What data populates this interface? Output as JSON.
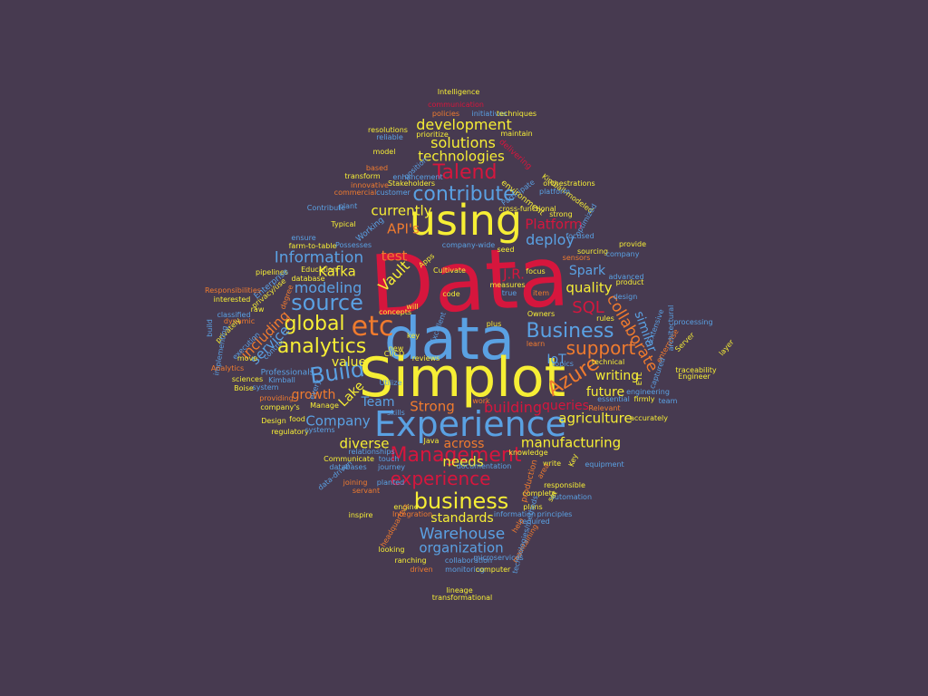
{
  "palette": {
    "background": "#473a50",
    "red": "#d6163d",
    "blue": "#5aa1e3",
    "yellow": "#f6ee35",
    "orange": "#f07b2e"
  },
  "words": [
    {
      "text": "Data",
      "color": "red"
    },
    {
      "text": "data",
      "color": "blue"
    },
    {
      "text": "Simplot",
      "color": "yellow"
    },
    {
      "text": "using",
      "color": "yellow"
    },
    {
      "text": "Experience",
      "color": "blue"
    },
    {
      "text": "etc",
      "color": "orange"
    },
    {
      "text": "Management",
      "color": "red"
    },
    {
      "text": "business",
      "color": "yellow"
    },
    {
      "text": "contribute",
      "color": "blue"
    },
    {
      "text": "source",
      "color": "blue"
    },
    {
      "text": "analytics",
      "color": "yellow"
    },
    {
      "text": "global",
      "color": "yellow"
    },
    {
      "text": "experience",
      "color": "red"
    },
    {
      "text": "Talend",
      "color": "red"
    },
    {
      "text": "Build",
      "color": "blue"
    },
    {
      "text": "Business",
      "color": "blue"
    },
    {
      "text": "support",
      "color": "orange"
    },
    {
      "text": "Azure",
      "color": "orange"
    },
    {
      "text": "Warehouse",
      "color": "blue"
    },
    {
      "text": "development",
      "color": "yellow"
    },
    {
      "text": "solutions",
      "color": "yellow"
    },
    {
      "text": "technologies",
      "color": "yellow"
    },
    {
      "text": "currently",
      "color": "yellow"
    },
    {
      "text": "Information",
      "color": "blue"
    },
    {
      "text": "modeling",
      "color": "blue"
    },
    {
      "text": "Company",
      "color": "blue"
    },
    {
      "text": "diverse",
      "color": "yellow"
    },
    {
      "text": "manufacturing",
      "color": "yellow"
    },
    {
      "text": "agriculture",
      "color": "yellow"
    },
    {
      "text": "organization",
      "color": "blue"
    },
    {
      "text": "standards",
      "color": "yellow"
    },
    {
      "text": "Strong",
      "color": "orange"
    },
    {
      "text": "across",
      "color": "orange"
    },
    {
      "text": "needs",
      "color": "yellow"
    },
    {
      "text": "building",
      "color": "red"
    },
    {
      "text": "SQL",
      "color": "red"
    },
    {
      "text": "deploy",
      "color": "blue"
    },
    {
      "text": "Platform",
      "color": "red"
    },
    {
      "text": "API's",
      "color": "orange"
    },
    {
      "text": "test",
      "color": "orange"
    },
    {
      "text": "Vault",
      "color": "yellow"
    },
    {
      "text": "Kafka",
      "color": "yellow"
    },
    {
      "text": "quality",
      "color": "yellow"
    },
    {
      "text": "Spark",
      "color": "blue"
    },
    {
      "text": "J.R.",
      "color": "red"
    },
    {
      "text": "including",
      "color": "orange"
    },
    {
      "text": "service",
      "color": "blue"
    },
    {
      "text": "Lake",
      "color": "yellow"
    },
    {
      "text": "growth",
      "color": "orange"
    },
    {
      "text": "value",
      "color": "yellow"
    },
    {
      "text": "Team",
      "color": "blue"
    },
    {
      "text": "similar",
      "color": "blue"
    },
    {
      "text": "collaborate",
      "color": "orange"
    },
    {
      "text": "queries",
      "color": "red"
    },
    {
      "text": "future",
      "color": "yellow"
    },
    {
      "text": "writing",
      "color": "yellow"
    },
    {
      "text": "IoT",
      "color": "blue"
    },
    {
      "text": "Intelligence",
      "color": "yellow"
    },
    {
      "text": "communication",
      "color": "red"
    },
    {
      "text": "policies",
      "color": "orange"
    },
    {
      "text": "initiatives",
      "color": "blue"
    },
    {
      "text": "techniques",
      "color": "yellow"
    },
    {
      "text": "resolutions",
      "color": "yellow"
    },
    {
      "text": "prioritize",
      "color": "yellow"
    },
    {
      "text": "maintain",
      "color": "yellow"
    },
    {
      "text": "reliable",
      "color": "blue"
    },
    {
      "text": "delivering",
      "color": "red"
    },
    {
      "text": "model",
      "color": "yellow"
    },
    {
      "text": "position",
      "color": "blue"
    },
    {
      "text": "orchestrations",
      "color": "yellow"
    },
    {
      "text": "based",
      "color": "orange"
    },
    {
      "text": "enhancement",
      "color": "blue"
    },
    {
      "text": "Kimball-modeled",
      "color": "yellow"
    },
    {
      "text": "transform",
      "color": "yellow"
    },
    {
      "text": "innovative",
      "color": "orange"
    },
    {
      "text": "Stakeholders",
      "color": "yellow"
    },
    {
      "text": "Participate",
      "color": "blue"
    },
    {
      "text": "commercial",
      "color": "orange"
    },
    {
      "text": "customer",
      "color": "blue"
    },
    {
      "text": "environment",
      "color": "yellow"
    },
    {
      "text": "plant",
      "color": "blue"
    },
    {
      "text": "strong",
      "color": "yellow"
    },
    {
      "text": "Contribute",
      "color": "blue"
    },
    {
      "text": "cross-functional",
      "color": "yellow"
    },
    {
      "text": "Typical",
      "color": "yellow"
    },
    {
      "text": "Working",
      "color": "blue"
    },
    {
      "text": "ensure",
      "color": "blue"
    },
    {
      "text": "farm-to-table",
      "color": "yellow"
    },
    {
      "text": "Possesses",
      "color": "blue"
    },
    {
      "text": "seed",
      "color": "yellow"
    },
    {
      "text": "focused",
      "color": "blue"
    },
    {
      "text": "sourcing",
      "color": "yellow"
    },
    {
      "text": "provide",
      "color": "yellow"
    },
    {
      "text": "company-wide",
      "color": "blue"
    },
    {
      "text": "company",
      "color": "blue"
    },
    {
      "text": "sensors",
      "color": "orange"
    },
    {
      "text": "Apps",
      "color": "yellow"
    },
    {
      "text": "pipelines",
      "color": "yellow"
    },
    {
      "text": "Education",
      "color": "yellow"
    },
    {
      "text": "Enterprise",
      "color": "blue"
    },
    {
      "text": "database",
      "color": "yellow"
    },
    {
      "text": "Cultivate",
      "color": "yellow"
    },
    {
      "text": "focus",
      "color": "yellow"
    },
    {
      "text": "advanced",
      "color": "blue"
    },
    {
      "text": "product",
      "color": "yellow"
    },
    {
      "text": "Responsibilities",
      "color": "orange"
    },
    {
      "text": "interested",
      "color": "yellow"
    },
    {
      "text": "privacy/use",
      "color": "yellow"
    },
    {
      "text": "code",
      "color": "yellow"
    },
    {
      "text": "true",
      "color": "blue"
    },
    {
      "text": "item",
      "color": "orange"
    },
    {
      "text": "design",
      "color": "blue"
    },
    {
      "text": "raw",
      "color": "yellow"
    },
    {
      "text": "classified",
      "color": "blue"
    },
    {
      "text": "dynamic",
      "color": "orange"
    },
    {
      "text": "concepts",
      "color": "yellow"
    },
    {
      "text": "will",
      "color": "yellow"
    },
    {
      "text": "Owners",
      "color": "yellow"
    },
    {
      "text": "rules",
      "color": "yellow"
    },
    {
      "text": "processing",
      "color": "blue"
    },
    {
      "text": "build",
      "color": "blue"
    },
    {
      "text": "privately",
      "color": "yellow"
    },
    {
      "text": "degree",
      "color": "orange"
    },
    {
      "text": "key",
      "color": "yellow"
    },
    {
      "text": "plus",
      "color": "yellow"
    },
    {
      "text": "learn",
      "color": "orange"
    },
    {
      "text": "Extensive",
      "color": "blue"
    },
    {
      "text": "enterprise",
      "color": "orange"
    },
    {
      "text": "implementing",
      "color": "blue"
    },
    {
      "text": "execution",
      "color": "blue"
    },
    {
      "text": "move",
      "color": "yellow"
    },
    {
      "text": "control",
      "color": "blue"
    },
    {
      "text": "new",
      "color": "yellow"
    },
    {
      "text": "CI/CD",
      "color": "yellow"
    },
    {
      "text": "reviews",
      "color": "yellow"
    },
    {
      "text": "topics",
      "color": "blue"
    },
    {
      "text": "technical",
      "color": "yellow"
    },
    {
      "text": "traceability",
      "color": "yellow"
    },
    {
      "text": "Engineer",
      "color": "yellow"
    },
    {
      "text": "Analytics",
      "color": "orange"
    },
    {
      "text": "Professionals",
      "color": "blue"
    },
    {
      "text": "sciences",
      "color": "yellow"
    },
    {
      "text": "Kimball",
      "color": "blue"
    },
    {
      "text": "Boise",
      "color": "yellow"
    },
    {
      "text": "system",
      "color": "blue"
    },
    {
      "text": "Utilize",
      "color": "blue"
    },
    {
      "text": "engineering",
      "color": "blue"
    },
    {
      "text": "providing",
      "color": "orange"
    },
    {
      "text": "Manage",
      "color": "yellow"
    },
    {
      "text": "essential",
      "color": "blue"
    },
    {
      "text": "firmly",
      "color": "yellow"
    },
    {
      "text": "team",
      "color": "blue"
    },
    {
      "text": "company's",
      "color": "yellow"
    },
    {
      "text": "skills",
      "color": "blue"
    },
    {
      "text": "work",
      "color": "orange"
    },
    {
      "text": "Relevant",
      "color": "orange"
    },
    {
      "text": "Design",
      "color": "yellow"
    },
    {
      "text": "food",
      "color": "yellow"
    },
    {
      "text": "accurately",
      "color": "yellow"
    },
    {
      "text": "regulatory",
      "color": "yellow"
    },
    {
      "text": "systems",
      "color": "blue"
    },
    {
      "text": "Java",
      "color": "yellow"
    },
    {
      "text": "knowledge",
      "color": "yellow"
    },
    {
      "text": "relationships",
      "color": "blue"
    },
    {
      "text": "Communicate",
      "color": "yellow"
    },
    {
      "text": "touch",
      "color": "blue"
    },
    {
      "text": "databases",
      "color": "blue"
    },
    {
      "text": "journey",
      "color": "blue"
    },
    {
      "text": "documentation",
      "color": "blue"
    },
    {
      "text": "write",
      "color": "yellow"
    },
    {
      "text": "equipment",
      "color": "blue"
    },
    {
      "text": "data-driven",
      "color": "blue"
    },
    {
      "text": "joining",
      "color": "orange"
    },
    {
      "text": "planted",
      "color": "blue"
    },
    {
      "text": "servant",
      "color": "orange"
    },
    {
      "text": "responsible",
      "color": "yellow"
    },
    {
      "text": "complete",
      "color": "yellow"
    },
    {
      "text": "automation",
      "color": "blue"
    },
    {
      "text": "inspire",
      "color": "yellow"
    },
    {
      "text": "Integration",
      "color": "orange"
    },
    {
      "text": "engine",
      "color": "yellow"
    },
    {
      "text": "plans",
      "color": "yellow"
    },
    {
      "text": "information",
      "color": "blue"
    },
    {
      "text": "principles",
      "color": "blue"
    },
    {
      "text": "required",
      "color": "blue"
    },
    {
      "text": "help",
      "color": "orange"
    },
    {
      "text": "looking",
      "color": "yellow"
    },
    {
      "text": "headquarters",
      "color": "orange"
    },
    {
      "text": "ranching",
      "color": "yellow"
    },
    {
      "text": "collaboration",
      "color": "blue"
    },
    {
      "text": "microservices",
      "color": "blue"
    },
    {
      "text": "driven",
      "color": "orange"
    },
    {
      "text": "monitoring",
      "color": "blue"
    },
    {
      "text": "computer",
      "color": "yellow"
    },
    {
      "text": "lineage",
      "color": "yellow"
    },
    {
      "text": "transformational",
      "color": "yellow"
    },
    {
      "text": "production",
      "color": "orange"
    },
    {
      "text": "Key",
      "color": "yellow"
    },
    {
      "text": "platform",
      "color": "blue"
    },
    {
      "text": "ETL",
      "color": "yellow"
    },
    {
      "text": "captured",
      "color": "blue"
    },
    {
      "text": "layer",
      "color": "yellow"
    },
    {
      "text": "Server",
      "color": "yellow"
    },
    {
      "text": "architectural",
      "color": "blue"
    },
    {
      "text": "maintaining",
      "color": "orange"
    },
    {
      "text": "technologies/methods",
      "color": "blue"
    },
    {
      "text": "measures",
      "color": "yellow"
    },
    {
      "text": "Excellent",
      "color": "blue"
    },
    {
      "text": "set",
      "color": "yellow"
    },
    {
      "text": "area",
      "color": "orange"
    },
    {
      "text": "every",
      "color": "blue"
    },
    {
      "text": "optimized",
      "color": "blue"
    },
    {
      "text": "insight",
      "color": "blue"
    },
    {
      "text": "aspect",
      "color": "orange"
    }
  ]
}
